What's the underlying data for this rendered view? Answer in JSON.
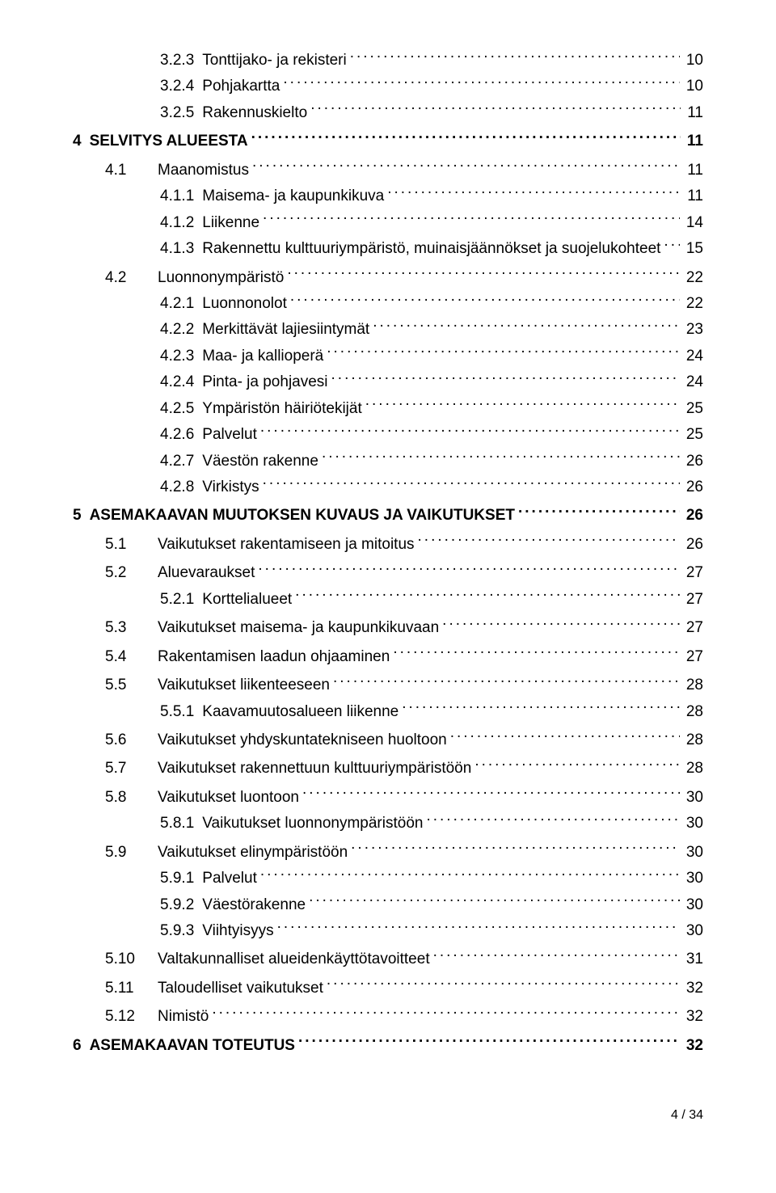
{
  "toc": [
    {
      "lvl": 2,
      "num": "3.2.3",
      "title": "Tonttijako- ja rekisteri",
      "page": "10",
      "spacer": false
    },
    {
      "lvl": 2,
      "num": "3.2.4",
      "title": "Pohjakartta",
      "page": "10",
      "spacer": false
    },
    {
      "lvl": 2,
      "num": "3.2.5",
      "title": "Rakennuskielto",
      "page": "11",
      "spacer": false
    },
    {
      "lvl": 0,
      "num": "4",
      "title": "SELVITYS ALUEESTA",
      "page": "11",
      "spacer": true
    },
    {
      "lvl": 1,
      "num": "4.1",
      "title": "Maanomistus",
      "page": "11",
      "spacer": true
    },
    {
      "lvl": 2,
      "num": "4.1.1",
      "title": "Maisema- ja kaupunkikuva",
      "page": "11",
      "spacer": false
    },
    {
      "lvl": 2,
      "num": "4.1.2",
      "title": "Liikenne",
      "page": "14",
      "spacer": false
    },
    {
      "lvl": 2,
      "num": "4.1.3",
      "title": "Rakennettu kulttuuriympäristö, muinaisjäännökset ja suojelukohteet",
      "page": "15",
      "spacer": false
    },
    {
      "lvl": 1,
      "num": "4.2",
      "title": "Luonnonympäristö",
      "page": "22",
      "spacer": true
    },
    {
      "lvl": 2,
      "num": "4.2.1",
      "title": "Luonnonolot",
      "page": "22",
      "spacer": false
    },
    {
      "lvl": 2,
      "num": "4.2.2",
      "title": "Merkittävät lajiesiintymät",
      "page": "23",
      "spacer": false
    },
    {
      "lvl": 2,
      "num": "4.2.3",
      "title": "Maa- ja kallioperä",
      "page": "24",
      "spacer": false
    },
    {
      "lvl": 2,
      "num": "4.2.4",
      "title": "Pinta- ja pohjavesi",
      "page": "24",
      "spacer": false
    },
    {
      "lvl": 2,
      "num": "4.2.5",
      "title": "Ympäristön häiriötekijät",
      "page": "25",
      "spacer": false
    },
    {
      "lvl": 2,
      "num": "4.2.6",
      "title": "Palvelut",
      "page": "25",
      "spacer": false
    },
    {
      "lvl": 2,
      "num": "4.2.7",
      "title": "Väestön rakenne",
      "page": "26",
      "spacer": false
    },
    {
      "lvl": 2,
      "num": "4.2.8",
      "title": "Virkistys",
      "page": "26",
      "spacer": false
    },
    {
      "lvl": 0,
      "num": "5",
      "title": "ASEMAKAAVAN MUUTOKSEN KUVAUS JA VAIKUTUKSET",
      "page": "26",
      "spacer": true
    },
    {
      "lvl": 1,
      "num": "5.1",
      "title": "Vaikutukset rakentamiseen ja mitoitus",
      "page": "26",
      "spacer": true
    },
    {
      "lvl": 1,
      "num": "5.2",
      "title": "Aluevaraukset",
      "page": "27",
      "spacer": true
    },
    {
      "lvl": 2,
      "num": "5.2.1",
      "title": "Korttelialueet",
      "page": "27",
      "spacer": false
    },
    {
      "lvl": 1,
      "num": "5.3",
      "title": "Vaikutukset maisema- ja kaupunkikuvaan",
      "page": "27",
      "spacer": true
    },
    {
      "lvl": 1,
      "num": "5.4",
      "title": "Rakentamisen laadun ohjaaminen",
      "page": "27",
      "spacer": true
    },
    {
      "lvl": 1,
      "num": "5.5",
      "title": "Vaikutukset liikenteeseen",
      "page": "28",
      "spacer": true
    },
    {
      "lvl": 2,
      "num": "5.5.1",
      "title": "Kaavamuutosalueen liikenne",
      "page": "28",
      "spacer": false
    },
    {
      "lvl": 1,
      "num": "5.6",
      "title": "Vaikutukset yhdyskuntatekniseen huoltoon",
      "page": "28",
      "spacer": true
    },
    {
      "lvl": 1,
      "num": "5.7",
      "title": "Vaikutukset rakennettuun kulttuuriympäristöön",
      "page": "28",
      "spacer": true
    },
    {
      "lvl": 1,
      "num": "5.8",
      "title": "Vaikutukset luontoon",
      "page": "30",
      "spacer": true
    },
    {
      "lvl": 2,
      "num": "5.8.1",
      "title": "Vaikutukset luonnonympäristöön",
      "page": "30",
      "spacer": false
    },
    {
      "lvl": 1,
      "num": "5.9",
      "title": "Vaikutukset elinympäristöön",
      "page": "30",
      "spacer": true
    },
    {
      "lvl": 2,
      "num": "5.9.1",
      "title": "Palvelut",
      "page": "30",
      "spacer": false
    },
    {
      "lvl": 2,
      "num": "5.9.2",
      "title": "Väestörakenne",
      "page": "30",
      "spacer": false
    },
    {
      "lvl": 2,
      "num": "5.9.3",
      "title": "Viihtyisyys",
      "page": "30",
      "spacer": false
    },
    {
      "lvl": 1,
      "num": "5.10",
      "title": "Valtakunnalliset alueidenkäyttötavoitteet",
      "page": "31",
      "spacer": true
    },
    {
      "lvl": 1,
      "num": "5.11",
      "title": "Taloudelliset vaikutukset",
      "page": "32",
      "spacer": true
    },
    {
      "lvl": 1,
      "num": "5.12",
      "title": "Nimistö",
      "page": "32",
      "spacer": true
    },
    {
      "lvl": 0,
      "num": "6",
      "title": "ASEMAKAAVAN TOTEUTUS",
      "page": "32",
      "spacer": true
    }
  ],
  "footer": "4 / 34"
}
